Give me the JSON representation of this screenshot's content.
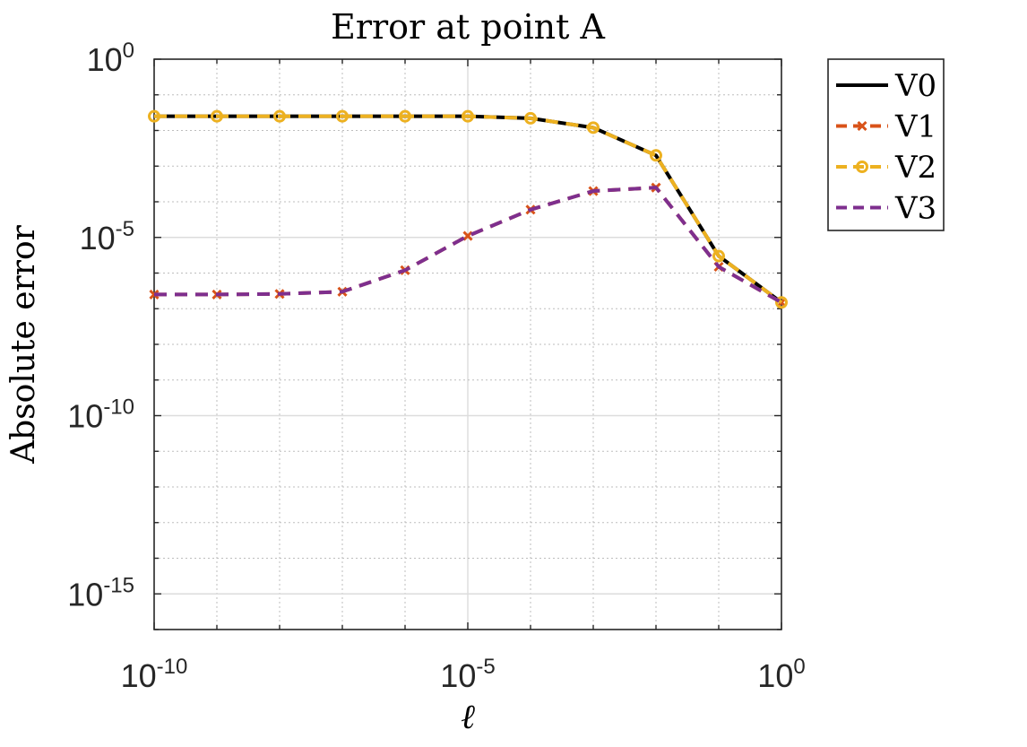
{
  "chart_data": {
    "type": "line",
    "title": "Error at point A",
    "xlabel": "ℓ",
    "ylabel": "Absolute error",
    "x_scale": "log",
    "y_scale": "log",
    "xlim": [
      1e-10,
      1
    ],
    "ylim": [
      1e-16,
      1
    ],
    "x_ticks": [
      {
        "base": "10",
        "exp": "-10"
      },
      {
        "base": "10",
        "exp": "-5"
      },
      {
        "base": "10",
        "exp": "0"
      }
    ],
    "y_ticks": [
      {
        "base": "10",
        "exp": "0"
      },
      {
        "base": "10",
        "exp": "-5"
      },
      {
        "base": "10",
        "exp": "-10"
      },
      {
        "base": "10",
        "exp": "-15"
      }
    ],
    "grid": true,
    "legend_position": "outside-top-right",
    "x": [
      1e-10,
      1e-09,
      1e-08,
      1e-07,
      1e-06,
      1e-05,
      0.0001,
      0.001,
      0.01,
      0.1,
      1
    ],
    "series": [
      {
        "name": "V0",
        "color": "#000000",
        "line": "solid",
        "marker": "none",
        "values": [
          0.025,
          0.025,
          0.025,
          0.025,
          0.025,
          0.025,
          0.022,
          0.012,
          0.002,
          3e-06,
          1.5e-07
        ]
      },
      {
        "name": "V1",
        "color": "#d95319",
        "line": "dashed",
        "marker": "x",
        "values": [
          2.5e-07,
          2.5e-07,
          2.6e-07,
          3e-07,
          1.2e-06,
          1.1e-05,
          6e-05,
          0.0002,
          0.00025,
          1.5e-06,
          1.5e-07
        ]
      },
      {
        "name": "V2",
        "color": "#edb120",
        "line": "dashed",
        "marker": "o",
        "values": [
          0.025,
          0.025,
          0.025,
          0.025,
          0.025,
          0.025,
          0.022,
          0.012,
          0.002,
          3e-06,
          1.5e-07
        ]
      },
      {
        "name": "V3",
        "color": "#7e2f8e",
        "line": "dashed",
        "marker": "none",
        "values": [
          2.5e-07,
          2.5e-07,
          2.6e-07,
          3e-07,
          1.2e-06,
          1.1e-05,
          6e-05,
          0.0002,
          0.00025,
          1.5e-06,
          1.5e-07
        ]
      }
    ]
  }
}
